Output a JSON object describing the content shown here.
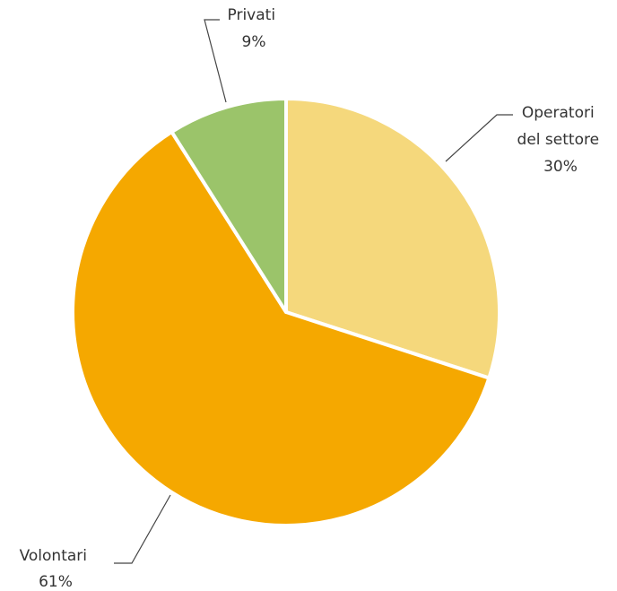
{
  "chart_data": {
    "type": "pie",
    "title": "",
    "slices": [
      {
        "label_lines": [
          "Operatori",
          "del settore"
        ],
        "value": 30,
        "value_text": "30%",
        "color": "#F5D87C"
      },
      {
        "label_lines": [
          "Volontari"
        ],
        "value": 61,
        "value_text": "61%",
        "color": "#F5A800"
      },
      {
        "label_lines": [
          "Privati"
        ],
        "value": 9,
        "value_text": "9%",
        "color": "#9BC46A"
      }
    ],
    "legend": "none",
    "start_angle": "12 o'clock",
    "direction": "clockwise"
  }
}
